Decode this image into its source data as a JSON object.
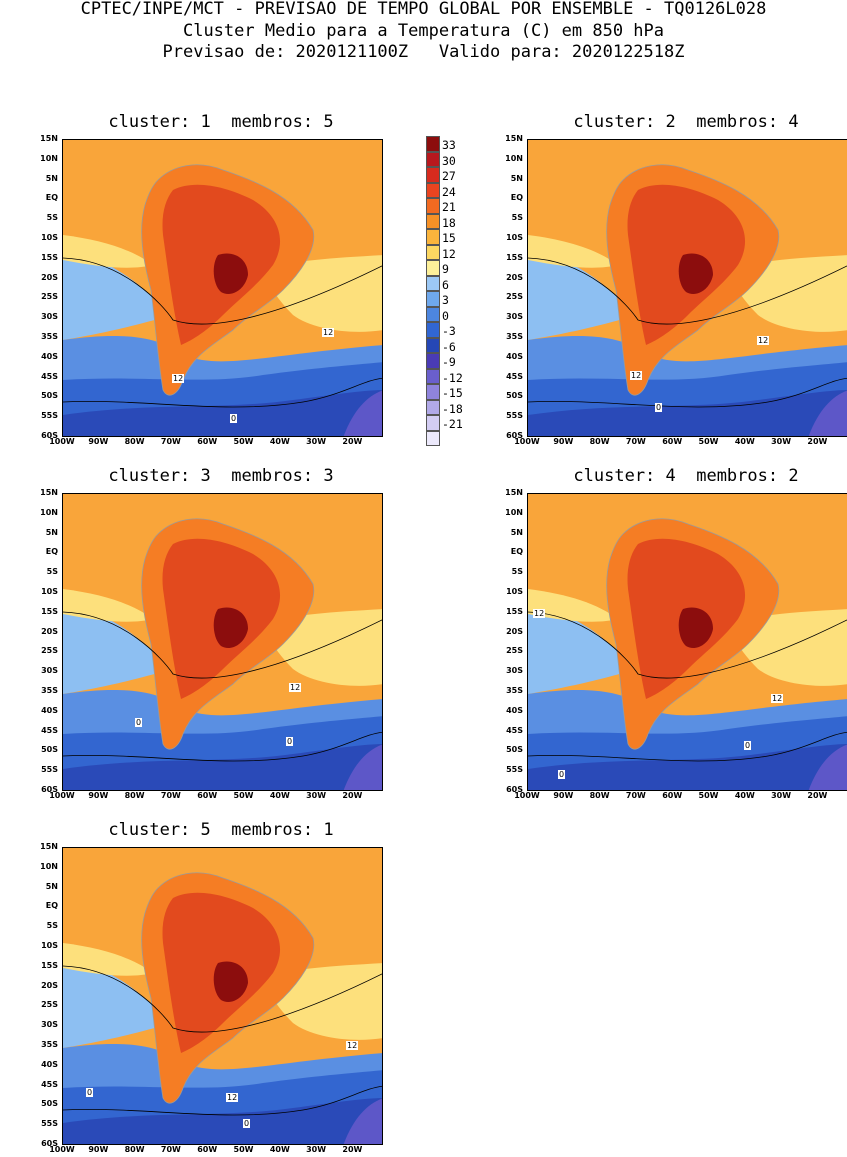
{
  "header": {
    "line1": "CPTEC/INPE/MCT - PREVISAO DE TEMPO GLOBAL POR ENSEMBLE - TQ0126L028",
    "line2": "Cluster Medio para a Temperatura (C) em 850 hPa",
    "line3": "Previsao de: 2020121100Z   Valido para: 2020122518Z"
  },
  "panels": [
    {
      "title": "cluster: 1  membros: 5",
      "contours": [
        "12",
        "12",
        "0"
      ]
    },
    {
      "title": "cluster: 2  membros: 4",
      "contours": [
        "12",
        "12",
        "0"
      ]
    },
    {
      "title": "cluster: 3  membros: 3",
      "contours": [
        "12",
        "0",
        "0"
      ]
    },
    {
      "title": "cluster: 4  membros: 2",
      "contours": [
        "12",
        "12",
        "0",
        "0"
      ]
    },
    {
      "title": "cluster: 5  membros: 1",
      "contours": [
        "12",
        "12",
        "0",
        "0"
      ]
    }
  ],
  "axes": {
    "lat_ticks": [
      "15N",
      "10N",
      "5N",
      "EQ",
      "5S",
      "10S",
      "15S",
      "20S",
      "25S",
      "30S",
      "35S",
      "40S",
      "45S",
      "50S",
      "55S",
      "60S"
    ],
    "lon_ticks": [
      "100W",
      "90W",
      "80W",
      "70W",
      "60W",
      "50W",
      "40W",
      "30W",
      "20W"
    ]
  },
  "colorbar": {
    "labels": [
      "33",
      "30",
      "27",
      "24",
      "21",
      "18",
      "15",
      "12",
      "9",
      "6",
      "3",
      "0",
      "-3",
      "-6",
      "-9",
      "-12",
      "-15",
      "-18",
      "-21"
    ],
    "colors": [
      "#8c0d0d",
      "#b8181e",
      "#d72b1e",
      "#ea4420",
      "#f26a21",
      "#f79126",
      "#fab43c",
      "#fcd762",
      "#fdf09a",
      "#9cc8f5",
      "#6fa8ec",
      "#4d86df",
      "#3166d2",
      "#2547b6",
      "#4a3bb5",
      "#6a5fcc",
      "#8f84dc",
      "#b1a9e8",
      "#d3cdf3",
      "#ece9fb"
    ]
  },
  "colors": {
    "hot": "#8c0d0d",
    "red": "#e24a1e",
    "orange": "#f57d24",
    "lorange": "#f9a53a",
    "yellow": "#fde07c",
    "lblue": "#8dbff2",
    "blue": "#5a8fe2",
    "dblue": "#3366d0",
    "navy": "#2a4ab8",
    "purple": "#5d57c8"
  }
}
